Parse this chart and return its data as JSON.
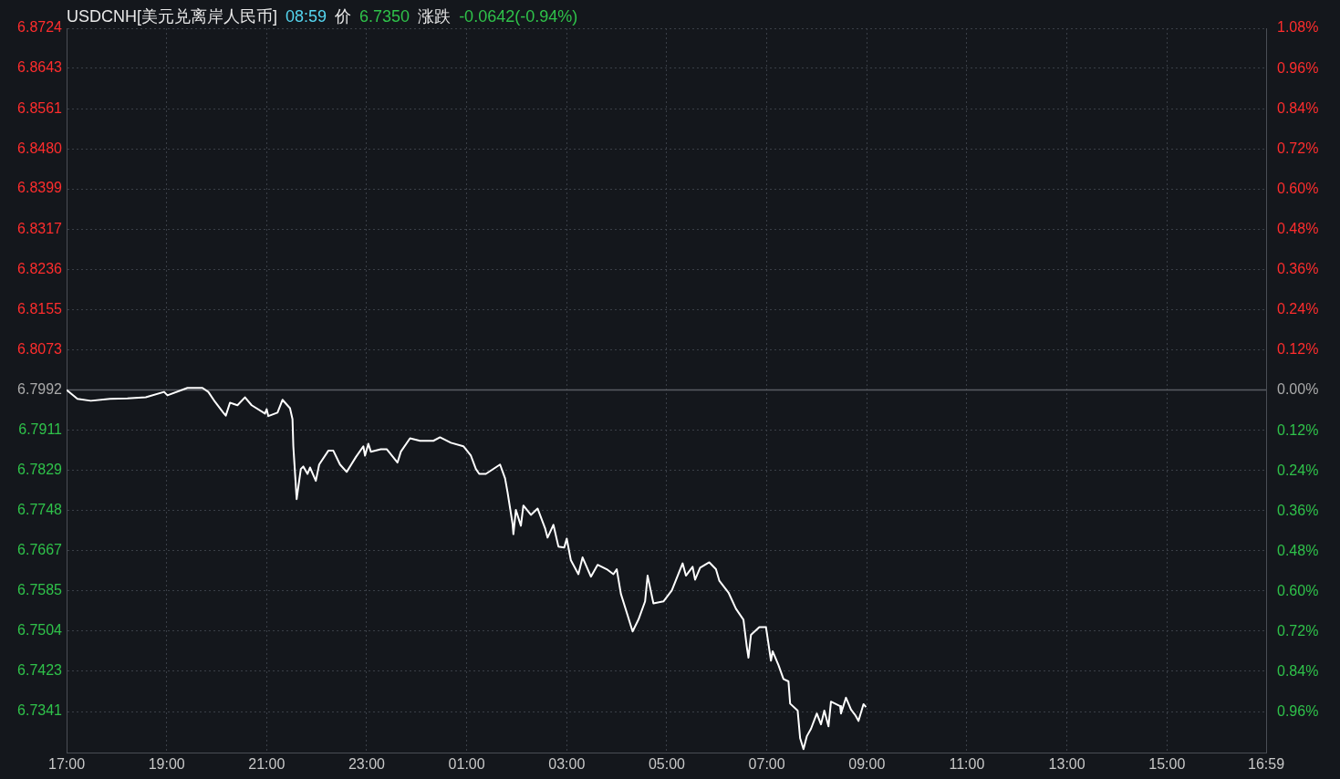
{
  "chart_data": {
    "type": "line",
    "title": "USDCNH[美元兑离岸人民币]",
    "annotations": [
      "08:59",
      "价",
      "6.7350",
      "涨跌",
      "-0.0642(-0.94%)"
    ],
    "x": [
      "2000-01-01T17:00",
      "2000-01-01T17:13",
      "2000-01-01T17:29",
      "2000-01-01T17:52",
      "2000-01-01T18:13",
      "2000-01-01T18:35",
      "2000-01-01T18:57",
      "2000-01-01T19:01",
      "2000-01-01T19:25",
      "2000-01-01T19:43",
      "2000-01-01T19:50",
      "2000-01-01T19:58",
      "2000-01-01T20:08",
      "2000-01-01T20:11",
      "2000-01-01T20:16",
      "2000-01-01T20:25",
      "2000-01-01T20:34",
      "2000-01-01T20:42",
      "2000-01-01T20:58",
      "2000-01-01T21:00",
      "2000-01-01T21:02",
      "2000-01-01T21:13",
      "2000-01-01T21:19",
      "2000-01-01T21:28",
      "2000-01-01T21:31",
      "2000-01-01T21:32",
      "2000-01-01T21:36",
      "2000-01-01T21:41",
      "2000-01-01T21:44",
      "2000-01-01T21:49",
      "2000-01-01T21:52",
      "2000-01-01T21:59",
      "2000-01-01T22:03",
      "2000-01-01T22:14",
      "2000-01-01T22:20",
      "2000-01-01T22:28",
      "2000-01-01T22:36",
      "2000-01-01T22:47",
      "2000-01-01T22:56",
      "2000-01-01T22:58",
      "2000-01-01T23:02",
      "2000-01-01T23:05",
      "2000-01-01T23:17",
      "2000-01-01T23:24",
      "2000-01-01T23:37",
      "2000-01-01T23:41",
      "2000-01-01T23:52",
      "2000-01-02T00:04",
      "2000-01-02T00:20",
      "2000-01-02T00:28",
      "2000-01-02T00:41",
      "2000-01-02T00:56",
      "2000-01-02T01:05",
      "2000-01-02T01:11",
      "2000-01-02T01:15",
      "2000-01-02T01:23",
      "2000-01-02T01:40",
      "2000-01-02T01:46",
      "2000-01-02T01:49",
      "2000-01-02T01:55",
      "2000-01-02T01:56",
      "2000-01-02T01:59",
      "2000-01-02T02:05",
      "2000-01-02T02:08",
      "2000-01-02T02:17",
      "2000-01-02T02:25",
      "2000-01-02T02:34",
      "2000-01-02T02:37",
      "2000-01-02T02:44",
      "2000-01-02T02:50",
      "2000-01-02T02:57",
      "2000-01-02T03:00",
      "2000-01-02T03:05",
      "2000-01-02T03:14",
      "2000-01-02T03:19",
      "2000-01-02T03:29",
      "2000-01-02T03:37",
      "2000-01-02T03:48",
      "2000-01-02T03:56",
      "2000-01-02T04:00",
      "2000-01-02T04:05",
      "2000-01-02T04:13",
      "2000-01-02T04:19",
      "2000-01-02T04:26",
      "2000-01-02T04:34",
      "2000-01-02T04:37",
      "2000-01-02T04:44",
      "2000-01-02T04:56",
      "2000-01-02T05:06",
      "2000-01-02T05:19",
      "2000-01-02T05:23",
      "2000-01-02T05:31",
      "2000-01-02T05:34",
      "2000-01-02T05:40",
      "2000-01-02T05:51",
      "2000-01-02T05:59",
      "2000-01-02T06:03",
      "2000-01-02T06:14",
      "2000-01-02T06:23",
      "2000-01-02T06:32",
      "2000-01-02T06:36",
      "2000-01-02T06:38",
      "2000-01-02T06:41",
      "2000-01-02T06:51",
      "2000-01-02T06:59",
      "2000-01-02T07:05",
      "2000-01-02T07:07",
      "2000-01-02T07:14",
      "2000-01-02T07:20",
      "2000-01-02T07:26",
      "2000-01-02T07:28",
      "2000-01-02T07:37",
      "2000-01-02T07:40",
      "2000-01-02T07:44",
      "2000-01-02T07:48",
      "2000-01-02T07:53",
      "2000-01-02T08:00",
      "2000-01-02T08:05",
      "2000-01-02T08:09",
      "2000-01-02T08:14",
      "2000-01-02T08:17",
      "2000-01-02T08:28",
      "2000-01-02T08:29",
      "2000-01-02T08:35",
      "2000-01-02T08:41",
      "2000-01-02T08:46",
      "2000-01-02T08:50",
      "2000-01-02T08:56",
      "2000-01-02T08:59"
    ],
    "series": [
      {
        "color": "#ffffff",
        "values": [
          6.7992,
          6.7974,
          6.797,
          6.7974,
          6.7975,
          6.7977,
          6.7988,
          6.7981,
          6.7996,
          6.7996,
          6.7988,
          6.7968,
          6.7946,
          6.794,
          6.7966,
          6.7961,
          6.7977,
          6.7961,
          6.7944,
          6.7953,
          6.7939,
          6.7946,
          6.7972,
          6.7955,
          6.7933,
          6.7878,
          6.7771,
          6.7832,
          6.7837,
          6.7822,
          6.7835,
          6.7808,
          6.7841,
          6.7869,
          6.7869,
          6.7841,
          6.7826,
          6.7856,
          6.7878,
          6.7859,
          6.7883,
          6.7867,
          6.7872,
          6.7872,
          6.7845,
          6.7867,
          6.7894,
          6.7889,
          6.7889,
          6.7896,
          6.7885,
          6.7878,
          6.7859,
          6.7832,
          6.7822,
          6.7822,
          6.7841,
          6.7813,
          6.7785,
          6.7721,
          6.77,
          6.7749,
          6.7717,
          6.7758,
          6.7739,
          6.7752,
          6.7712,
          6.7693,
          6.7719,
          6.7675,
          6.7673,
          6.7691,
          6.7647,
          6.7619,
          6.7653,
          6.7614,
          6.7638,
          6.7629,
          6.7619,
          6.7629,
          6.7579,
          6.7536,
          6.7503,
          6.7527,
          6.7564,
          6.7616,
          6.756,
          6.7564,
          6.7586,
          6.7641,
          6.7616,
          6.7634,
          6.7608,
          6.7632,
          6.7643,
          6.7629,
          6.7606,
          6.7582,
          6.7549,
          6.7527,
          6.7472,
          6.745,
          6.7496,
          6.7512,
          6.7512,
          6.7444,
          6.7463,
          6.7435,
          6.7407,
          6.7402,
          6.7357,
          6.7343,
          6.7287,
          6.7265,
          6.7291,
          6.7306,
          6.7337,
          6.7315,
          6.7343,
          6.7311,
          6.7361,
          6.7352,
          6.7337,
          6.7369,
          6.7345,
          6.7334,
          6.7322,
          6.7356,
          6.735
        ]
      }
    ],
    "xlim": [
      "2000-01-01T17:00",
      "2000-01-02T16:59"
    ],
    "xticks": [
      {
        "value": "2000-01-01T17:00",
        "label": "17:00"
      },
      {
        "value": "2000-01-01T19:00",
        "label": "19:00"
      },
      {
        "value": "2000-01-01T21:00",
        "label": "21:00"
      },
      {
        "value": "2000-01-01T23:00",
        "label": "23:00"
      },
      {
        "value": "2000-01-02T01:00",
        "label": "01:00"
      },
      {
        "value": "2000-01-02T03:00",
        "label": "03:00"
      },
      {
        "value": "2000-01-02T05:00",
        "label": "05:00"
      },
      {
        "value": "2000-01-02T07:00",
        "label": "07:00"
      },
      {
        "value": "2000-01-02T09:00",
        "label": "09:00"
      },
      {
        "value": "2000-01-02T11:00",
        "label": "11:00"
      },
      {
        "value": "2000-01-02T13:00",
        "label": "13:00"
      },
      {
        "value": "2000-01-02T15:00",
        "label": "15:00"
      },
      {
        "value": "2000-01-02T16:59",
        "label": "16:59"
      }
    ],
    "ylim": [
      6.7258,
      6.8724
    ],
    "yticks": [
      {
        "value": 6.7341,
        "label": "6.7341"
      },
      {
        "value": 6.7423,
        "label": "6.7423"
      },
      {
        "value": 6.7504,
        "label": "6.7504"
      },
      {
        "value": 6.7585,
        "label": "6.7585"
      },
      {
        "value": 6.7667,
        "label": "6.7667"
      },
      {
        "value": 6.7748,
        "label": "6.7748"
      },
      {
        "value": 6.7829,
        "label": "6.7829"
      },
      {
        "value": 6.7911,
        "label": "6.7911"
      },
      {
        "value": 6.7992,
        "label": "6.7992"
      },
      {
        "value": 6.8073,
        "label": "6.8073"
      },
      {
        "value": 6.8155,
        "label": "6.8155"
      },
      {
        "value": 6.8236,
        "label": "6.8236"
      },
      {
        "value": 6.8317,
        "label": "6.8317"
      },
      {
        "value": 6.8399,
        "label": "6.8399"
      },
      {
        "value": 6.848,
        "label": "6.8480"
      },
      {
        "value": 6.8561,
        "label": "6.8561"
      },
      {
        "value": 6.8643,
        "label": "6.8643"
      },
      {
        "value": 6.8724,
        "label": "6.8724"
      }
    ],
    "y2lim": [
      -1.08,
      1.08
    ],
    "y2ticks": [
      {
        "value": -0.96,
        "label": "0.96%"
      },
      {
        "value": -0.84,
        "label": "0.84%"
      },
      {
        "value": -0.72,
        "label": "0.72%"
      },
      {
        "value": -0.6,
        "label": "0.60%"
      },
      {
        "value": -0.48,
        "label": "0.48%"
      },
      {
        "value": -0.36,
        "label": "0.36%"
      },
      {
        "value": -0.24,
        "label": "0.24%"
      },
      {
        "value": -0.12,
        "label": "0.12%"
      },
      {
        "value": 0,
        "label": "0.00%"
      },
      {
        "value": 0.12,
        "label": "0.12%"
      },
      {
        "value": 0.24,
        "label": "0.24%"
      },
      {
        "value": 0.36,
        "label": "0.36%"
      },
      {
        "value": 0.48,
        "label": "0.48%"
      },
      {
        "value": 0.6,
        "label": "0.60%"
      },
      {
        "value": 0.72,
        "label": "0.72%"
      },
      {
        "value": 0.84,
        "label": "0.84%"
      },
      {
        "value": 0.96,
        "label": "0.96%"
      },
      {
        "value": 1.08,
        "label": "1.08%"
      }
    ],
    "ref_lines": [
      {
        "axis": "y",
        "value": 6.7992,
        "color": "#5a5d63"
      }
    ],
    "grid": true,
    "legend": false,
    "marker": "none"
  }
}
